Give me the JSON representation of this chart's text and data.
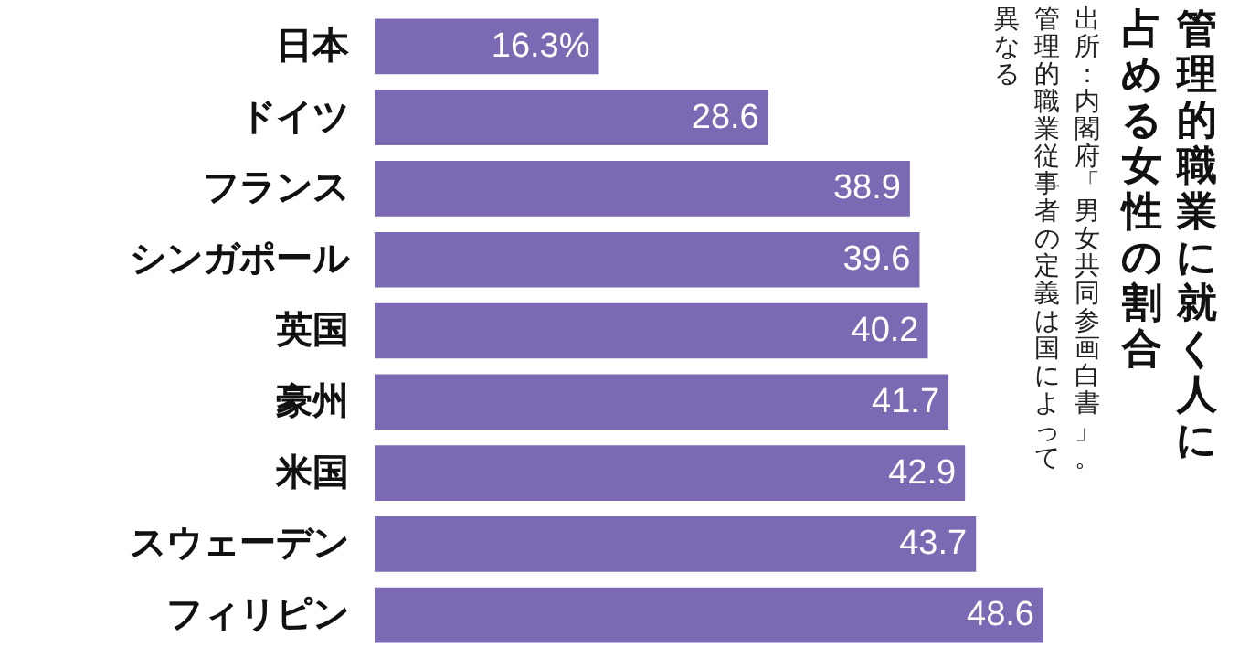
{
  "chart_data": {
    "type": "bar",
    "orientation": "horizontal",
    "title": "管理的職業に就く人に占める女性の割合",
    "annotations": [
      "出所：内閣府「男女共同参画白書」。管理的職業従事者の定義は国によって異なる"
    ],
    "categories": [
      "日本",
      "ドイツ",
      "フランス",
      "シンガポール",
      "英国",
      "豪州",
      "米国",
      "スウェーデン",
      "フィリピン"
    ],
    "values": [
      16.3,
      28.6,
      38.9,
      39.6,
      40.2,
      41.7,
      42.9,
      43.7,
      48.6
    ],
    "value_labels": [
      "16.3%",
      "28.6",
      "38.9",
      "39.6",
      "40.2",
      "41.7",
      "42.9",
      "43.7",
      "48.6"
    ],
    "color": "#7b6ab3"
  }
}
